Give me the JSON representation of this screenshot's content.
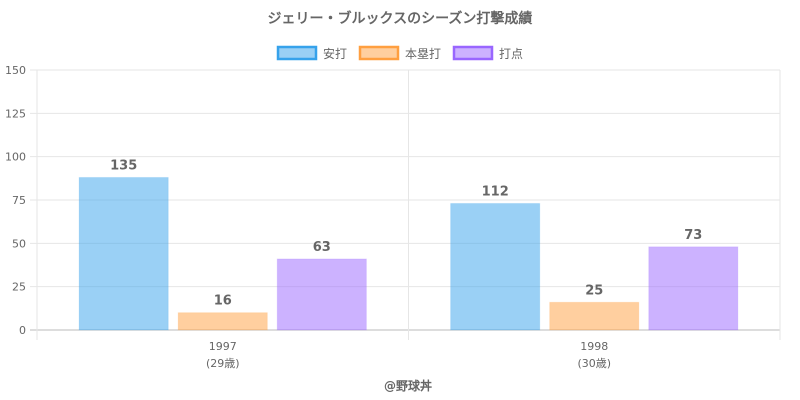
{
  "chart_data": {
    "type": "bar",
    "title": "ジェリー・ブルックスのシーズン打撃成績",
    "categories": [
      "1997",
      "1998"
    ],
    "category_sublabels": [
      "(29歳)",
      "(30歳)"
    ],
    "series": [
      {
        "name": "安打",
        "values": [
          135,
          112
        ],
        "plot_values": [
          88,
          73
        ],
        "color": "#36a2eb"
      },
      {
        "name": "本塁打",
        "values": [
          16,
          25
        ],
        "plot_values": [
          10,
          16
        ],
        "color": "#ff9f40"
      },
      {
        "name": "打点",
        "values": [
          63,
          73
        ],
        "plot_values": [
          41,
          48
        ],
        "color": "#9966ff"
      }
    ],
    "ylim": [
      0,
      150
    ],
    "yticks": [
      0,
      25,
      50,
      75,
      100,
      125,
      150
    ],
    "grid": true,
    "legend": "top-center"
  },
  "credit": "@野球丼"
}
